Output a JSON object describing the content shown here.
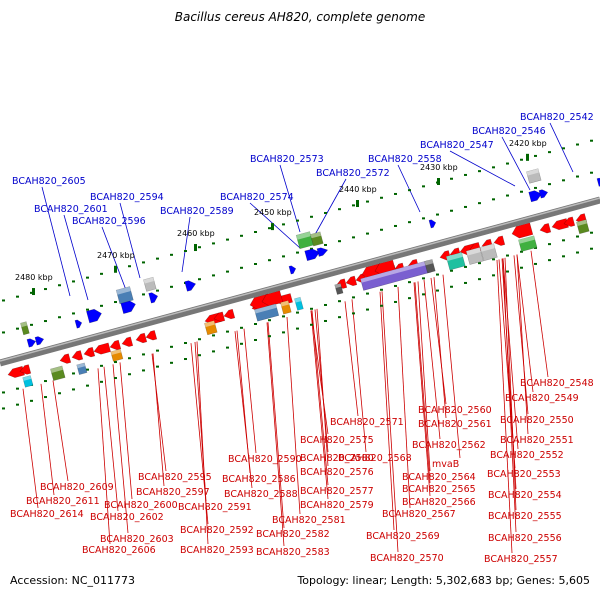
{
  "title": "Bacillus cereus AH820, complete genome",
  "footer": {
    "accession": "Accession: NC_011773",
    "summary": "Topology: linear; Length: 5,302,683 bp; Genes: 5,605"
  },
  "colors": {
    "forward_label": "#0000cc",
    "reverse_label": "#cc0000",
    "forward_gene": "#0000ff",
    "reverse_gene": "#ff0000",
    "backbone": "#777777",
    "tick": "#006400"
  },
  "ticks": [
    {
      "label": "2420 kbp"
    },
    {
      "label": "2430 kbp"
    },
    {
      "label": "2440 kbp"
    },
    {
      "label": "2450 kbp"
    },
    {
      "label": "2460 kbp"
    },
    {
      "label": "2470 kbp"
    },
    {
      "label": "2480 kbp"
    }
  ],
  "forward_labels": [
    "BCAH820_2542",
    "BCAH820_2546",
    "BCAH820_2547",
    "BCAH820_2558",
    "BCAH820_2573",
    "BCAH820_2572",
    "BCAH820_2574",
    "BCAH820_2589",
    "BCAH820_2594",
    "BCAH820_2596",
    "BCAH820_2605",
    "BCAH820_2601"
  ],
  "reverse_labels": [
    "BCAH820_2548",
    "BCAH820_2549",
    "BCAH820_2560",
    "BCAH820_2550",
    "BCAH820_2571",
    "BCAH820_2561",
    "BCAH820_2551",
    "BCAH820_2575",
    "BCAH820_2562",
    "BCAH820_2552",
    "BCAH820_2568",
    "BCAH820_2580",
    "BCAH820_2590",
    "BCAH820_2576",
    "mvaB",
    "BCAH820_2553",
    "BCAH820_2609",
    "BCAH820_2595",
    "BCAH820_2586",
    "BCAH820_2564",
    "BCAH820_2597",
    "BCAH820_2588",
    "BCAH820_2577",
    "BCAH820_2565",
    "BCAH820_2554",
    "BCAH820_2611",
    "BCAH820_2600",
    "BCAH820_2591",
    "BCAH820_2579",
    "BCAH820_2566",
    "BCAH820_2614",
    "BCAH820_2602",
    "BCAH820_2581",
    "BCAH820_2567",
    "BCAH820_2555",
    "BCAH820_2592",
    "BCAH820_2582",
    "BCAH820_2603",
    "BCAH820_2569",
    "BCAH820_2556",
    "BCAH820_2606",
    "BCAH820_2593",
    "BCAH820_2583",
    "BCAH820_2570",
    "BCAH820_2557"
  ]
}
